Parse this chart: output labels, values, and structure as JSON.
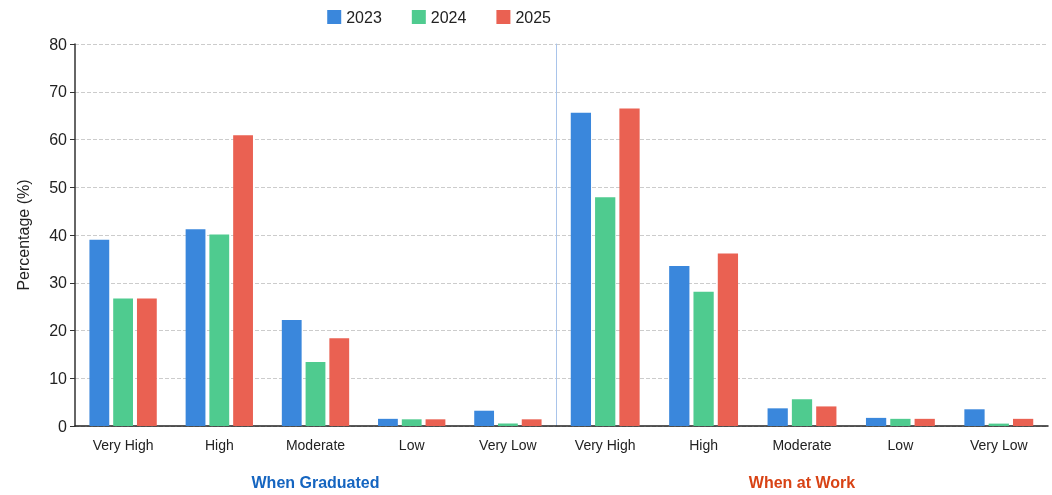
{
  "chart_data": [
    {
      "type": "bar",
      "ylabel": "Percentage (%)",
      "xlabel": "When Graduated",
      "categories": [
        "Very High",
        "High",
        "Moderate",
        "Low",
        "Very Low"
      ],
      "series": [
        {
          "name": "2023",
          "color": "#3a87dc",
          "values": [
            39.0,
            41.2,
            22.2,
            1.5,
            3.2
          ]
        },
        {
          "name": "2024",
          "color": "#4fcb8f",
          "values": [
            26.7,
            40.1,
            13.4,
            1.4,
            0.5
          ]
        },
        {
          "name": "2025",
          "color": "#ea6152",
          "values": [
            26.7,
            60.9,
            18.4,
            1.4,
            1.4
          ]
        }
      ],
      "ylim": [
        0,
        80
      ],
      "yticks": [
        0,
        10,
        20,
        30,
        40,
        50,
        60,
        70,
        80
      ],
      "grid": "y",
      "legend": "top right"
    },
    {
      "type": "bar",
      "xlabel": "When at Work",
      "categories": [
        "Very High",
        "High",
        "Moderate",
        "Low",
        "Very Low"
      ],
      "series": [
        {
          "name": "2023",
          "color": "#3a87dc",
          "values": [
            65.6,
            33.5,
            3.7,
            1.7,
            3.5
          ]
        },
        {
          "name": "2024",
          "color": "#4fcb8f",
          "values": [
            47.9,
            28.1,
            5.6,
            1.5,
            0.5
          ]
        },
        {
          "name": "2025",
          "color": "#ea6152",
          "values": [
            66.5,
            36.1,
            4.1,
            1.5,
            1.5
          ]
        }
      ],
      "ylim": [
        0,
        80
      ],
      "yticks": [
        0,
        10,
        20,
        30,
        40,
        50,
        60,
        70,
        80
      ],
      "grid": "y",
      "tick_labels": "x"
    }
  ]
}
